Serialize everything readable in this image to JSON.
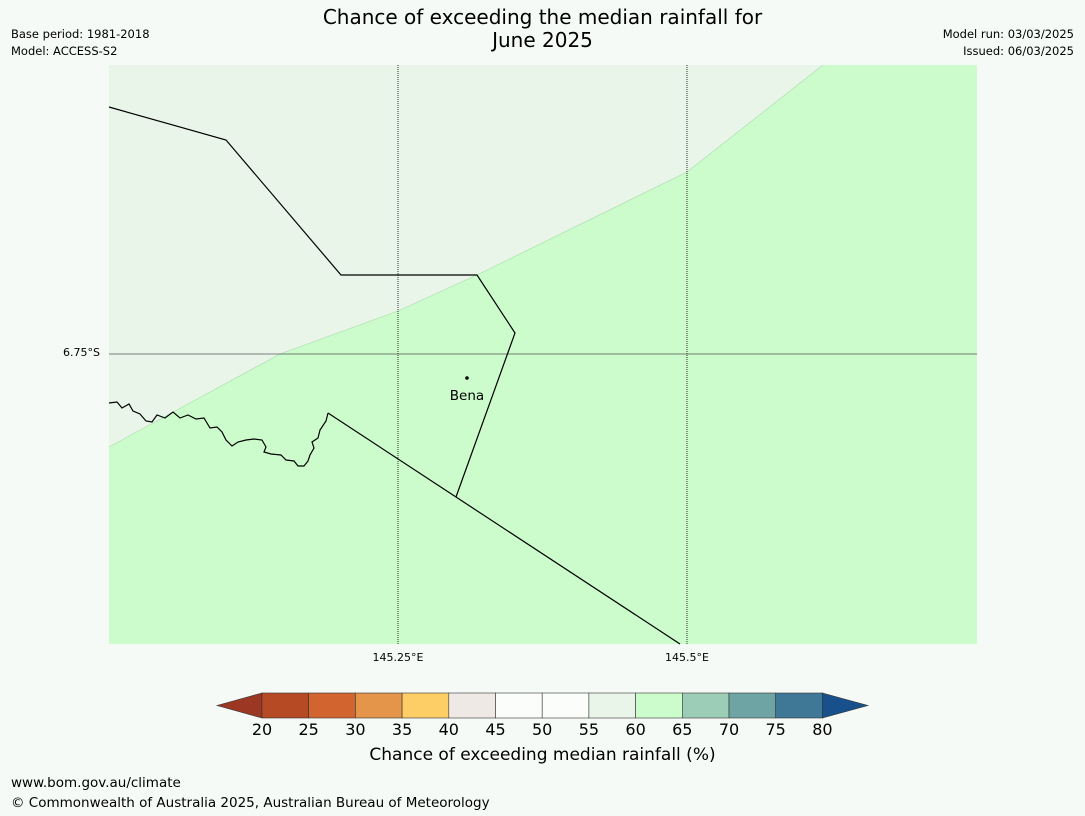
{
  "header": {
    "title": "Chance of exceeding the median rainfall for\nJune 2025",
    "base_period": "Base period: 1981-2018",
    "model": "Model: ACCESS-S2",
    "model_run": "Model run: 03/03/2025",
    "issued": "Issued: 06/03/2025"
  },
  "map": {
    "lat_label": "6.75°S",
    "lon_labels": [
      "145.25°E",
      "145.5°E"
    ],
    "town": "Bena",
    "category_colors": {
      "55-60": "#e9f5e9",
      "60-65": "#ccfccc"
    }
  },
  "colorbar": {
    "label": "Chance of exceeding median rainfall (%)",
    "ticks": [
      "20",
      "25",
      "30",
      "35",
      "40",
      "45",
      "50",
      "55",
      "60",
      "65",
      "70",
      "75",
      "80"
    ],
    "colors": [
      "#9b3723",
      "#b54a24",
      "#d2642f",
      "#e4954a",
      "#fdcd66",
      "#efe9e6",
      "#fbfdfb",
      "#fbfdfb",
      "#e9f5e9",
      "#ccfccc",
      "#9ccdb6",
      "#6ea4a4",
      "#3f7797",
      "#17508a"
    ]
  },
  "footer": {
    "url": "www.bom.gov.au/climate",
    "copyright": "© Commonwealth of Australia 2025, Australian Bureau of Meteorology"
  }
}
